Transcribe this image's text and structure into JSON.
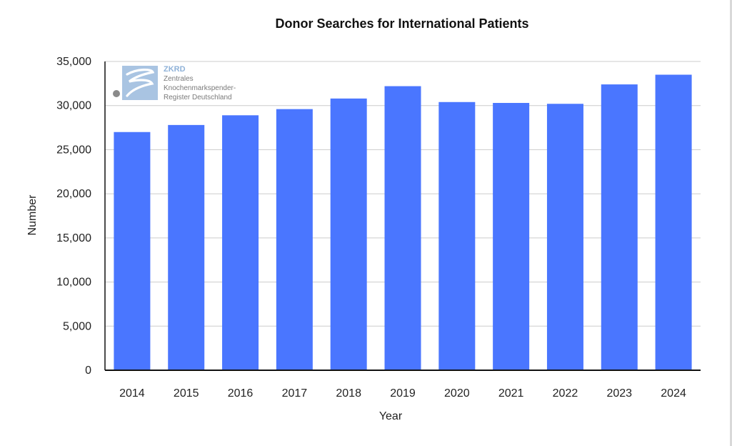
{
  "chart_data": {
    "type": "bar",
    "title": "Donor Searches for International Patients",
    "xlabel": "Year",
    "ylabel": "Number",
    "categories": [
      "2014",
      "2015",
      "2016",
      "2017",
      "2018",
      "2019",
      "2020",
      "2021",
      "2022",
      "2023",
      "2024"
    ],
    "values": [
      27000,
      27800,
      28900,
      29600,
      30800,
      32200,
      30400,
      30300,
      30200,
      32400,
      33500
    ],
    "ylim": [
      0,
      35000
    ],
    "yticks": [
      0,
      5000,
      10000,
      15000,
      20000,
      25000,
      30000,
      35000
    ],
    "ytick_labels": [
      "0",
      "5,000",
      "10,000",
      "15,000",
      "20,000",
      "25,000",
      "30,000",
      "35,000"
    ],
    "grid": true,
    "legend": "none",
    "bar_color": "#4a76ff"
  },
  "logo": {
    "brand": "ZKRD",
    "line1": "Zentrales",
    "line2": "Knochenmarkspender-",
    "line3": "Register Deutschland",
    "color": "#a9c4e2"
  }
}
